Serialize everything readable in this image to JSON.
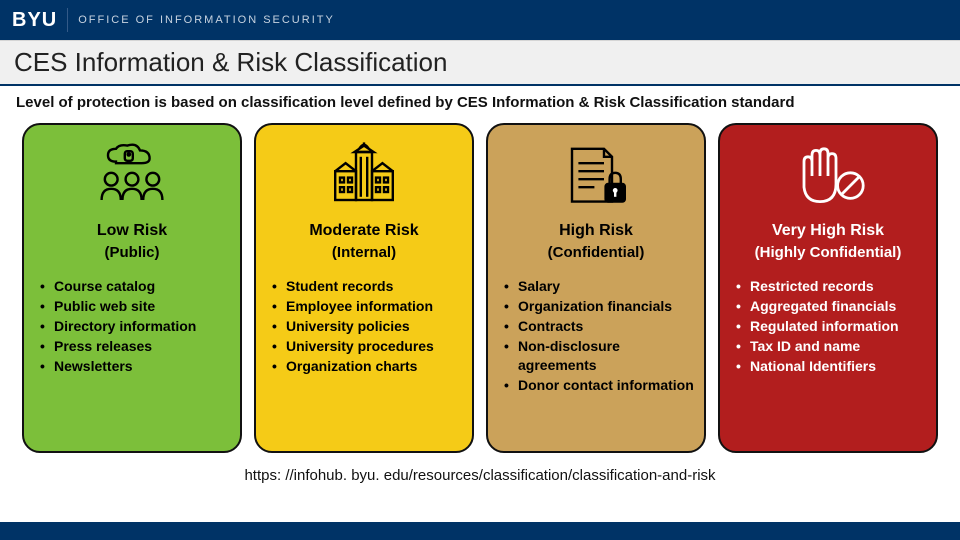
{
  "header": {
    "logo_text": "BYU",
    "office_text": "OFFICE OF INFORMATION SECURITY"
  },
  "title": "CES Information & Risk Classification",
  "subtitle": "Level of protection is based on classification level defined by CES Information & Risk Classification standard",
  "colors": {
    "brand_navy": "#003366",
    "title_bg": "#f0f0f0"
  },
  "cards": [
    {
      "title": "Low Risk",
      "subtitle": "(Public)",
      "bg_color": "#7cbf3a",
      "text_color": "#000000",
      "icon": "cloud-team",
      "items": [
        "Course catalog",
        "Public web site",
        "Directory information",
        "Press releases",
        "Newsletters"
      ]
    },
    {
      "title": "Moderate Risk",
      "subtitle": "(Internal)",
      "bg_color": "#f5cb17",
      "text_color": "#000000",
      "icon": "university",
      "items": [
        "Student records",
        "Employee information",
        "University policies",
        "University procedures",
        "Organization charts"
      ]
    },
    {
      "title": "High Risk",
      "subtitle": "(Confidential)",
      "bg_color": "#cba25a",
      "text_color": "#000000",
      "icon": "doc-lock",
      "items": [
        "Salary",
        "Organization financials",
        "Contracts",
        "Non-disclosure agreements",
        "Donor contact information"
      ]
    },
    {
      "title": "Very High Risk",
      "subtitle": "(Highly Confidential)",
      "bg_color": "#b21e1e",
      "text_color": "#ffffff",
      "icon": "hand-stop",
      "items": [
        "Restricted records",
        "Aggregated financials",
        "Regulated information",
        "Tax ID and name",
        "National Identifiers"
      ]
    }
  ],
  "footer_url": "https: //infohub. byu. edu/resources/classification/classification-and-risk"
}
